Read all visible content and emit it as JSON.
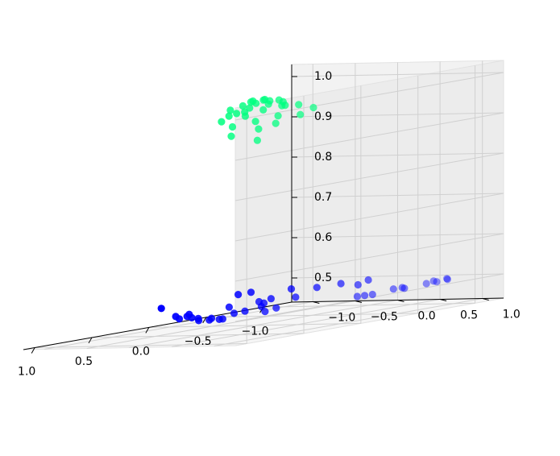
{
  "chart_data": {
    "type": "scatter3d",
    "title": "",
    "xlabel": "",
    "ylabel": "",
    "zlabel": "",
    "xlim": [
      -1.25,
      1.1
    ],
    "ylim": [
      -1.25,
      1.25
    ],
    "zlim": [
      0.44,
      1.03
    ],
    "xticks": [
      -1.0,
      -0.5,
      0.0,
      0.5,
      1.0
    ],
    "yticks": [
      -1.0,
      -0.5,
      0.0,
      0.5,
      1.0
    ],
    "zticks": [
      0.5,
      0.6,
      0.7,
      0.8,
      0.9,
      1.0
    ],
    "xtick_labels": [
      "−1.0",
      "−0.5",
      "0.0",
      "0.5",
      "1.0"
    ],
    "ytick_labels": [
      "−1.0",
      "−0.5",
      "0.0",
      "0.5",
      "1.0"
    ],
    "ztick_labels": [
      "0.5",
      "0.6",
      "0.7",
      "0.8",
      "0.9",
      "1.0"
    ],
    "grid": true,
    "series": [
      {
        "color": "#0000ff",
        "points": [
          [
            -1.056,
            -0.085,
            0.5
          ],
          [
            -0.887,
            -0.18,
            0.5
          ],
          [
            -0.8,
            0.138,
            0.5
          ],
          [
            -0.697,
            -0.208,
            0.5
          ],
          [
            -0.642,
            -0.436,
            0.5
          ],
          [
            -0.5,
            -0.72,
            0.5
          ],
          [
            -0.385,
            -0.716,
            0.5
          ],
          [
            -0.18,
            0.238,
            0.5
          ],
          [
            -0.123,
            0.025,
            0.5
          ],
          [
            0.034,
            0.095,
            0.5
          ],
          [
            0.111,
            0.255,
            0.5
          ],
          [
            0.3,
            0.1,
            0.5
          ],
          [
            0.54,
            0.61,
            0.5
          ],
          [
            0.657,
            0.11,
            0.5
          ],
          [
            0.764,
            0.095,
            0.5
          ],
          [
            0.772,
            0.24,
            0.5
          ],
          [
            0.9,
            0.32,
            0.5
          ],
          [
            0.897,
            0.54,
            0.5
          ],
          [
            1.012,
            0.7,
            0.5
          ],
          [
            0.993,
            0.8,
            0.5
          ],
          [
            -1.05,
            0.85,
            0.5
          ],
          [
            -1.004,
            0.92,
            0.5
          ],
          [
            -0.926,
            0.86,
            0.5
          ],
          [
            -0.887,
            0.95,
            0.5
          ],
          [
            -0.797,
            0.95,
            0.5
          ],
          [
            -0.53,
            0.92,
            0.5
          ],
          [
            -0.6,
            0.93,
            0.5
          ],
          [
            -0.56,
            1.009,
            0.5
          ],
          [
            -0.2,
            1.026,
            0.5
          ],
          [
            -0.154,
            1.0,
            0.5
          ],
          [
            -0.25,
            1.05,
            0.5
          ],
          [
            0.3,
            0.48,
            0.5
          ],
          [
            0.65,
            0.63,
            0.5
          ],
          [
            0.9,
            0.7,
            0.5
          ],
          [
            0.95,
            0.9,
            0.5
          ],
          [
            0.965,
            0.88,
            0.5
          ],
          [
            0.4,
            0.79,
            0.5
          ],
          [
            0.58,
            0.9,
            0.5
          ],
          [
            0.85,
            0.4,
            0.5
          ],
          [
            0.3,
            -0.7,
            0.5
          ]
        ]
      },
      {
        "color": "#00ff7f",
        "points": [
          [
            -0.05,
            0.05,
            0.998
          ],
          [
            0.0,
            0.1,
            0.999
          ],
          [
            0.05,
            0.02,
            0.997
          ],
          [
            -0.02,
            -0.05,
            0.996
          ],
          [
            0.08,
            0.12,
            0.995
          ],
          [
            -0.1,
            0.15,
            0.994
          ],
          [
            0.15,
            0.06,
            0.992
          ],
          [
            -0.13,
            0.0,
            0.991
          ],
          [
            0.03,
            0.2,
            0.99
          ],
          [
            0.18,
            0.18,
            0.988
          ],
          [
            -0.18,
            0.09,
            0.986
          ],
          [
            0.2,
            -0.02,
            0.984
          ],
          [
            -0.05,
            0.25,
            0.982
          ],
          [
            0.12,
            0.26,
            0.98
          ],
          [
            0.25,
            0.12,
            0.978
          ],
          [
            -0.22,
            0.22,
            0.976
          ],
          [
            -0.25,
            0.02,
            0.974
          ],
          [
            0.27,
            0.25,
            0.972
          ],
          [
            0.0,
            -0.12,
            0.97
          ],
          [
            0.16,
            -0.09,
            0.968
          ],
          [
            -0.29,
            0.3,
            0.965
          ],
          [
            0.33,
            0.05,
            0.962
          ],
          [
            0.02,
            0.3,
            0.96
          ],
          [
            0.24,
            0.33,
            0.957
          ],
          [
            -0.16,
            0.32,
            0.954
          ],
          [
            0.36,
            0.22,
            0.95
          ],
          [
            0.1,
            0.38,
            0.945
          ],
          [
            0.28,
            0.42,
            0.94
          ],
          [
            0.43,
            0.3,
            0.93
          ],
          [
            0.35,
            0.5,
            0.915
          ]
        ]
      }
    ]
  }
}
